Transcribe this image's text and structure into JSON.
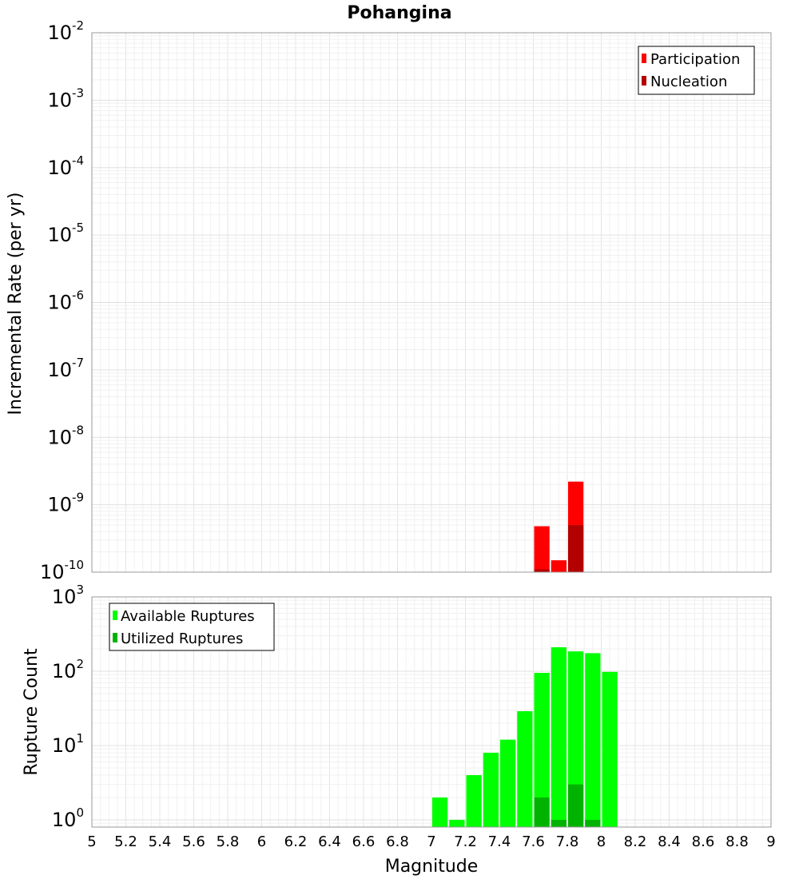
{
  "chart_data": [
    {
      "type": "bar",
      "title": "Pohangina",
      "ylabel": "Incremental Rate (per yr)",
      "xlabel": "",
      "xlim": [
        5,
        9
      ],
      "ylim": [
        1e-10,
        0.01
      ],
      "yscale": "log",
      "grid": true,
      "legend_position": "top-right",
      "bar_width": 0.1,
      "series": [
        {
          "name": "Participation",
          "color": "#ff0000",
          "x": [
            7.65,
            7.75,
            7.85
          ],
          "values": [
            4.8e-10,
            1.5e-10,
            2.2e-09
          ]
        },
        {
          "name": "Nucleation",
          "color": "#b30000",
          "x": [
            7.65,
            7.85
          ],
          "values": [
            1.1e-10,
            5e-10
          ]
        }
      ]
    },
    {
      "type": "bar",
      "title": "",
      "ylabel": "Rupture Count",
      "xlabel": "Magnitude",
      "xlim": [
        5,
        9
      ],
      "ylim": [
        0.8,
        1000
      ],
      "yscale": "log",
      "grid": true,
      "legend_position": "top-left",
      "bar_width": 0.1,
      "xticks": [
        "5",
        "5.2",
        "5.4",
        "5.6",
        "5.8",
        "6",
        "6.2",
        "6.4",
        "6.6",
        "6.8",
        "7",
        "7.2",
        "7.4",
        "7.6",
        "7.8",
        "8",
        "8.2",
        "8.4",
        "8.6",
        "8.8",
        "9"
      ],
      "series": [
        {
          "name": "Available Ruptures",
          "color": "#00ff00",
          "x": [
            7.05,
            7.15,
            7.25,
            7.35,
            7.45,
            7.55,
            7.65,
            7.75,
            7.85,
            7.95,
            8.05
          ],
          "values": [
            2,
            1,
            4,
            8,
            12,
            29,
            95,
            210,
            185,
            175,
            98
          ]
        },
        {
          "name": "Utilized Ruptures",
          "color": "#00b300",
          "x": [
            7.65,
            7.75,
            7.85,
            7.95
          ],
          "values": [
            2,
            1,
            3,
            1
          ]
        }
      ]
    }
  ]
}
